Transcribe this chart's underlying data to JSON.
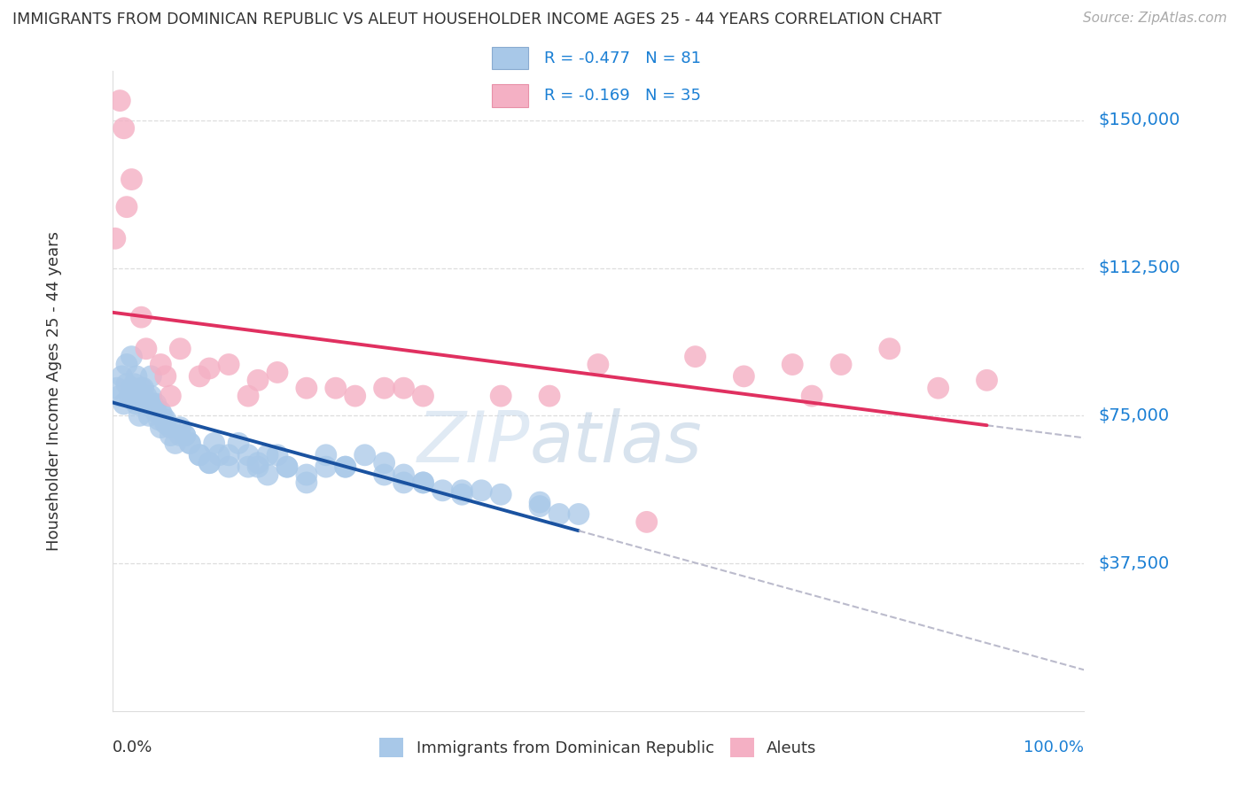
{
  "title": "IMMIGRANTS FROM DOMINICAN REPUBLIC VS ALEUT HOUSEHOLDER INCOME AGES 25 - 44 YEARS CORRELATION CHART",
  "source": "Source: ZipAtlas.com",
  "ylabel": "Householder Income Ages 25 - 44 years",
  "yticks": [
    37500,
    75000,
    112500,
    150000
  ],
  "ytick_labels": [
    "$37,500",
    "$75,000",
    "$112,500",
    "$150,000"
  ],
  "legend1_label": "R = -0.477   N = 81",
  "legend2_label": "R = -0.169   N = 35",
  "footer_label1": "Immigrants from Dominican Republic",
  "footer_label2": "Aleuts",
  "blue_fill": "#a8c8e8",
  "pink_fill": "#f4b0c4",
  "line_blue": "#1a52a0",
  "line_pink": "#e03060",
  "line_gray": "#bbbbcc",
  "text_blue": "#1a7fd4",
  "text_dark": "#333333",
  "text_gray": "#aaaaaa",
  "grid_color": "#dddddd",
  "ymin": 0,
  "ymax": 162500,
  "xmin": 0,
  "xmax": 100,
  "blue_x": [
    0.5,
    0.8,
    1.0,
    1.2,
    1.5,
    1.8,
    2.0,
    2.2,
    2.5,
    2.8,
    3.0,
    3.2,
    3.5,
    3.8,
    4.0,
    4.2,
    4.5,
    4.8,
    5.0,
    5.5,
    6.0,
    6.5,
    7.0,
    7.5,
    8.0,
    9.0,
    10.0,
    11.0,
    12.0,
    13.0,
    14.0,
    15.0,
    16.0,
    17.0,
    18.0,
    20.0,
    22.0,
    24.0,
    26.0,
    28.0,
    30.0,
    32.0,
    34.0,
    36.0,
    2.0,
    2.5,
    3.0,
    3.5,
    4.0,
    4.5,
    5.0,
    5.5,
    6.0,
    7.0,
    8.0,
    9.0,
    10.0,
    12.0,
    14.0,
    16.0,
    18.0,
    20.0,
    24.0,
    28.0,
    32.0,
    36.0,
    40.0,
    44.0,
    46.0,
    1.5,
    2.3,
    3.8,
    5.2,
    7.5,
    10.5,
    15.0,
    22.0,
    30.0,
    38.0,
    44.0,
    48.0
  ],
  "blue_y": [
    82000,
    80000,
    85000,
    78000,
    83000,
    80000,
    82000,
    80000,
    78000,
    75000,
    80000,
    82000,
    78000,
    75000,
    80000,
    78000,
    76000,
    74000,
    72000,
    73000,
    70000,
    68000,
    72000,
    70000,
    68000,
    65000,
    63000,
    65000,
    62000,
    68000,
    65000,
    62000,
    60000,
    65000,
    62000,
    58000,
    65000,
    62000,
    65000,
    63000,
    60000,
    58000,
    56000,
    55000,
    90000,
    85000,
    82000,
    80000,
    85000,
    78000,
    76000,
    74000,
    72000,
    70000,
    68000,
    65000,
    63000,
    65000,
    62000,
    65000,
    62000,
    60000,
    62000,
    60000,
    58000,
    56000,
    55000,
    52000,
    50000,
    88000,
    83000,
    78000,
    75000,
    70000,
    68000,
    63000,
    62000,
    58000,
    56000,
    53000,
    50000
  ],
  "pink_x": [
    0.3,
    0.8,
    1.2,
    2.0,
    3.0,
    5.0,
    7.0,
    9.0,
    12.0,
    15.0,
    20.0,
    25.0,
    30.0,
    40.0,
    50.0,
    60.0,
    70.0,
    80.0,
    90.0,
    1.5,
    3.5,
    5.5,
    10.0,
    17.0,
    23.0,
    32.0,
    45.0,
    65.0,
    75.0,
    85.0,
    6.0,
    14.0,
    28.0,
    55.0,
    72.0
  ],
  "pink_y": [
    120000,
    155000,
    148000,
    135000,
    100000,
    88000,
    92000,
    85000,
    88000,
    84000,
    82000,
    80000,
    82000,
    80000,
    88000,
    90000,
    88000,
    92000,
    84000,
    128000,
    92000,
    85000,
    87000,
    86000,
    82000,
    80000,
    80000,
    85000,
    88000,
    82000,
    80000,
    80000,
    82000,
    48000,
    80000
  ]
}
